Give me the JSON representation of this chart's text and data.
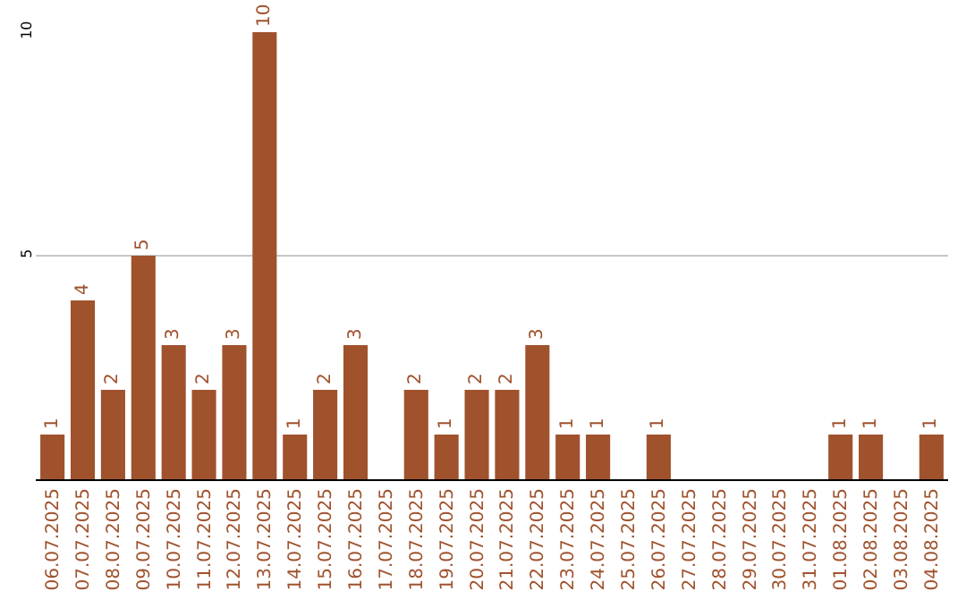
{
  "chart_data": {
    "type": "bar",
    "categories": [
      "06.07.2025",
      "07.07.2025",
      "08.07.2025",
      "09.07.2025",
      "10.07.2025",
      "11.07.2025",
      "12.07.2025",
      "13.07.2025",
      "14.07.2025",
      "15.07.2025",
      "16.07.2025",
      "17.07.2025",
      "18.07.2025",
      "19.07.2025",
      "20.07.2025",
      "21.07.2025",
      "22.07.2025",
      "23.07.2025",
      "24.07.2025",
      "25.07.2025",
      "26.07.2025",
      "27.07.2025",
      "28.07.2025",
      "29.07.2025",
      "30.07.2025",
      "31.07.2025",
      "01.08.2025",
      "02.08.2025",
      "03.08.2025",
      "04.08.2025"
    ],
    "values": [
      1,
      4,
      2,
      5,
      3,
      2,
      3,
      10,
      1,
      2,
      3,
      0,
      2,
      1,
      2,
      2,
      3,
      1,
      1,
      0,
      1,
      0,
      0,
      0,
      0,
      0,
      1,
      1,
      0,
      1
    ],
    "value_labels": [
      "1",
      "4",
      "2",
      "5",
      "3",
      "2",
      "3",
      "10",
      "1",
      "2",
      "3",
      null,
      "2",
      "1",
      "2",
      "2",
      "3",
      "1",
      "1",
      null,
      "1",
      null,
      null,
      null,
      null,
      null,
      "1",
      "1",
      null,
      "1"
    ],
    "color": "#a0522d",
    "ylim": [
      0,
      10
    ],
    "yticks": [
      {
        "value": 0,
        "label": null
      },
      5,
      10
    ],
    "grid": "y",
    "legend": false
  }
}
